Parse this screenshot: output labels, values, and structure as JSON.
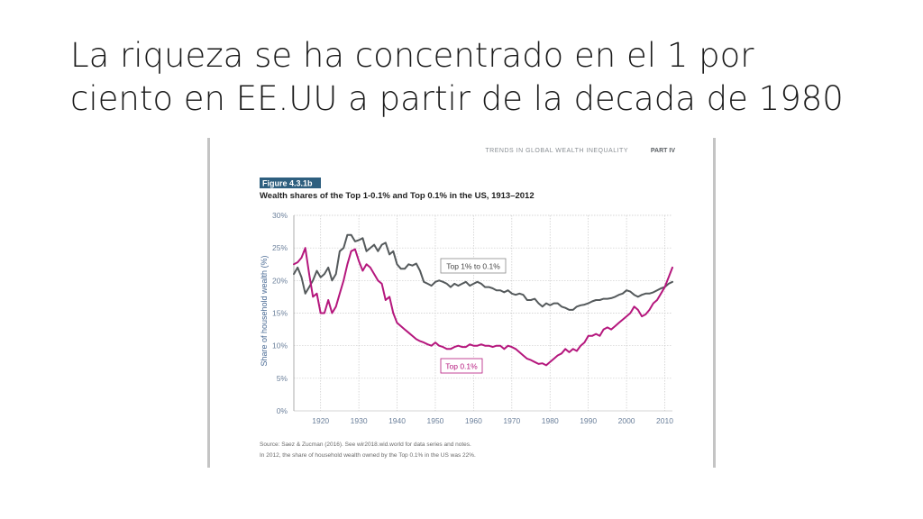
{
  "slide": {
    "title_line1": "La riqueza se ha concentrado en el 1 por",
    "title_line2": "ciento en EE.UU a partir de la decada de 1980"
  },
  "page_header": {
    "section": "TRENDS IN GLOBAL WEALTH INEQUALITY",
    "part": "PART IV"
  },
  "figure": {
    "label": "Figure 4.3.1b",
    "title": "Wealth shares of the Top 1-0.1% and Top 0.1% in the US, 1913–2012",
    "source": "Source: Saez & Zucman (2016). See wir2018.wid.world for data series and notes.",
    "note": "In 2012, the share of household wealth owned by the Top 0.1% in the US was 22%."
  },
  "colors": {
    "top1_to_01": "#555a5c",
    "top01": "#b5177d",
    "label_bg": "#2e5f7f",
    "grid": "#c9c9c9",
    "tick_text": "#6a7f9a"
  },
  "chart_data": {
    "type": "line",
    "title": "Wealth shares of the Top 1-0.1% and Top 0.1% in the US, 1913–2012",
    "xlabel": "",
    "ylabel": "Share of household wealth (%)",
    "xlim": [
      1913,
      2012
    ],
    "ylim": [
      0,
      30
    ],
    "xticks": [
      1920,
      1930,
      1940,
      1950,
      1960,
      1970,
      1980,
      1990,
      2000,
      2010
    ],
    "yticks": [
      0,
      5,
      10,
      15,
      20,
      25,
      30
    ],
    "ytick_labels": [
      "0%",
      "5%",
      "10%",
      "15%",
      "20%",
      "25%",
      "30%"
    ],
    "grid": true,
    "series": [
      {
        "name": "Top 1% to 0.1%",
        "color": "#555a5c",
        "x": [
          1913,
          1914,
          1915,
          1916,
          1917,
          1918,
          1919,
          1920,
          1921,
          1922,
          1923,
          1924,
          1925,
          1926,
          1927,
          1928,
          1929,
          1930,
          1931,
          1932,
          1933,
          1934,
          1935,
          1936,
          1937,
          1938,
          1939,
          1940,
          1941,
          1942,
          1943,
          1944,
          1945,
          1946,
          1947,
          1948,
          1949,
          1950,
          1951,
          1952,
          1953,
          1954,
          1955,
          1956,
          1957,
          1958,
          1959,
          1960,
          1961,
          1962,
          1963,
          1964,
          1965,
          1966,
          1967,
          1968,
          1969,
          1970,
          1971,
          1972,
          1973,
          1974,
          1975,
          1976,
          1977,
          1978,
          1979,
          1980,
          1981,
          1982,
          1983,
          1984,
          1985,
          1986,
          1987,
          1988,
          1989,
          1990,
          1991,
          1992,
          1993,
          1994,
          1995,
          1996,
          1997,
          1998,
          1999,
          2000,
          2001,
          2002,
          2003,
          2004,
          2005,
          2006,
          2007,
          2008,
          2009,
          2010,
          2011,
          2012
        ],
        "y": [
          21.0,
          22.0,
          20.5,
          18.0,
          19.0,
          20.0,
          21.5,
          20.5,
          21.0,
          22.0,
          20.0,
          21.0,
          24.5,
          25.0,
          27.0,
          27.0,
          26.0,
          26.2,
          26.5,
          24.5,
          25.0,
          25.5,
          24.5,
          25.5,
          25.8,
          24.0,
          24.5,
          22.5,
          21.8,
          21.8,
          22.5,
          22.3,
          22.6,
          21.5,
          19.8,
          19.5,
          19.2,
          19.8,
          20.0,
          19.8,
          19.5,
          19.0,
          19.5,
          19.2,
          19.5,
          19.8,
          19.2,
          19.5,
          19.8,
          19.5,
          19.0,
          19.0,
          18.8,
          18.5,
          18.5,
          18.2,
          18.5,
          18.0,
          17.8,
          18.0,
          17.8,
          17.0,
          17.0,
          17.2,
          16.5,
          16.0,
          16.5,
          16.2,
          16.5,
          16.5,
          16.0,
          15.8,
          15.5,
          15.5,
          16.0,
          16.2,
          16.3,
          16.5,
          16.8,
          17.0,
          17.0,
          17.2,
          17.2,
          17.3,
          17.5,
          17.8,
          18.0,
          18.5,
          18.3,
          17.8,
          17.5,
          17.8,
          18.0,
          18.0,
          18.2,
          18.5,
          18.8,
          19.0,
          19.5,
          19.8
        ]
      },
      {
        "name": "Top 0.1%",
        "color": "#b5177d",
        "x": [
          1913,
          1914,
          1915,
          1916,
          1917,
          1918,
          1919,
          1920,
          1921,
          1922,
          1923,
          1924,
          1925,
          1926,
          1927,
          1928,
          1929,
          1930,
          1931,
          1932,
          1933,
          1934,
          1935,
          1936,
          1937,
          1938,
          1939,
          1940,
          1941,
          1942,
          1943,
          1944,
          1945,
          1946,
          1947,
          1948,
          1949,
          1950,
          1951,
          1952,
          1953,
          1954,
          1955,
          1956,
          1957,
          1958,
          1959,
          1960,
          1961,
          1962,
          1963,
          1964,
          1965,
          1966,
          1967,
          1968,
          1969,
          1970,
          1971,
          1972,
          1973,
          1974,
          1975,
          1976,
          1977,
          1978,
          1979,
          1980,
          1981,
          1982,
          1983,
          1984,
          1985,
          1986,
          1987,
          1988,
          1989,
          1990,
          1991,
          1992,
          1993,
          1994,
          1995,
          1996,
          1997,
          1998,
          1999,
          2000,
          2001,
          2002,
          2003,
          2004,
          2005,
          2006,
          2007,
          2008,
          2009,
          2010,
          2011,
          2012
        ],
        "y": [
          22.5,
          22.8,
          23.5,
          25.0,
          21.0,
          17.5,
          18.0,
          15.0,
          15.0,
          17.0,
          15.0,
          16.0,
          18.0,
          20.0,
          22.5,
          24.5,
          24.8,
          23.0,
          21.5,
          22.5,
          22.0,
          21.0,
          20.0,
          19.5,
          17.0,
          17.5,
          15.0,
          13.5,
          13.0,
          12.5,
          12.0,
          11.5,
          11.0,
          10.7,
          10.5,
          10.2,
          10.0,
          10.5,
          10.0,
          9.8,
          9.5,
          9.5,
          9.8,
          10.0,
          9.8,
          9.8,
          10.2,
          10.0,
          10.0,
          10.2,
          10.0,
          10.0,
          9.8,
          10.0,
          10.0,
          9.5,
          10.0,
          9.8,
          9.5,
          9.0,
          8.5,
          8.0,
          7.8,
          7.5,
          7.2,
          7.3,
          7.0,
          7.5,
          8.0,
          8.5,
          8.8,
          9.5,
          9.0,
          9.5,
          9.2,
          10.0,
          10.5,
          11.5,
          11.5,
          11.8,
          11.5,
          12.5,
          12.8,
          12.5,
          13.0,
          13.5,
          14.0,
          14.5,
          15.0,
          16.0,
          15.5,
          14.5,
          14.8,
          15.5,
          16.5,
          17.0,
          18.0,
          19.0,
          20.5,
          22.0
        ]
      }
    ],
    "annotations": [
      {
        "text": "Top 1% to 0.1%",
        "series": "Top 1% to 0.1%"
      },
      {
        "text": "Top 0.1%",
        "series": "Top 0.1%"
      }
    ]
  }
}
